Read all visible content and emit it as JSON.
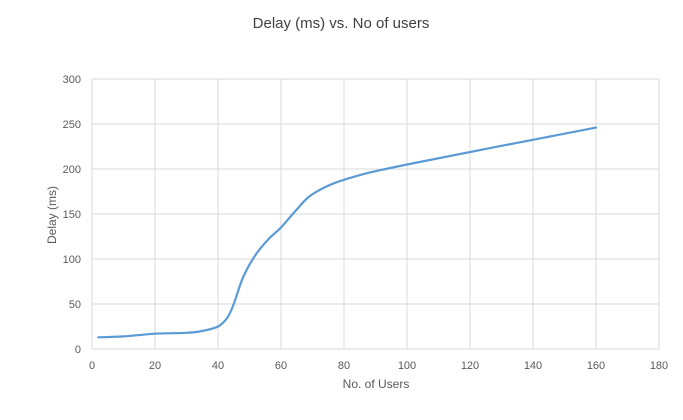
{
  "chart_data": {
    "type": "line",
    "title": "Delay (ms) vs. No of users",
    "xlabel": "No. of Users",
    "ylabel": "Delay (ms)",
    "xlim": [
      0,
      180
    ],
    "ylim": [
      0,
      300
    ],
    "x_ticks": [
      0,
      20,
      40,
      60,
      80,
      100,
      120,
      140,
      160,
      180
    ],
    "y_ticks": [
      0,
      50,
      100,
      150,
      200,
      250,
      300
    ],
    "grid": true,
    "legend": "none",
    "series": [
      {
        "color": "#5B9BD5",
        "x": [
          2,
          10,
          20,
          30,
          35,
          40,
          43,
          45,
          48,
          52,
          56,
          60,
          65,
          70,
          80,
          100,
          160
        ],
        "y": [
          13,
          14,
          17,
          18,
          20,
          25,
          35,
          50,
          80,
          105,
          122,
          135,
          155,
          172,
          188,
          205,
          246
        ]
      }
    ]
  }
}
